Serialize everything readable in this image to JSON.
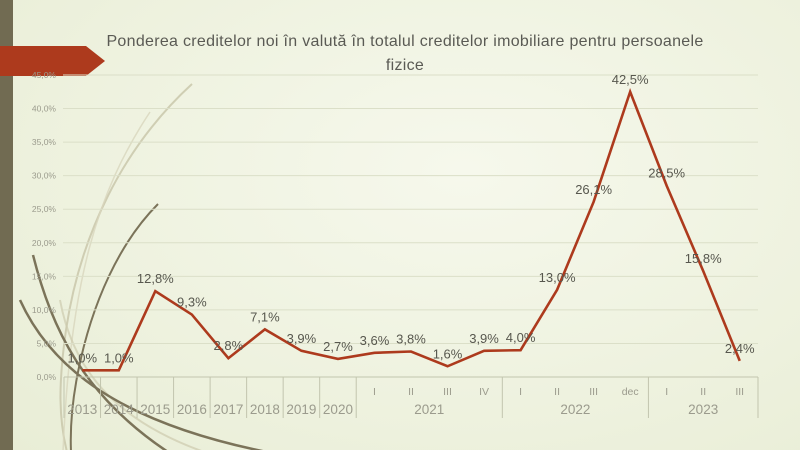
{
  "slide": {
    "title": "Ponderea creditelor noi în valută în totalul creditelor imobiliare pentru persoanele fizice"
  },
  "colors": {
    "accent": "#ad3a1d",
    "bar": "#716b52",
    "background_light": "#f6f8ec",
    "background_mid": "#edf1dd",
    "background_dark": "#e3e8cd",
    "grid": "#dbdfc8",
    "axis_line": "#c2c5ae",
    "axis_text": "#9b9b8d",
    "data_label": "#57574e",
    "title_text": "#5a5a54",
    "swoosh_dark": "#7b7359",
    "swoosh_light": "#c9c7aa"
  },
  "chart_data": {
    "type": "line",
    "title": "Ponderea creditelor noi în valută în totalul creditelor imobiliare pentru persoanele fizice",
    "series": [
      {
        "name": "Ponderea creditelor noi în valută",
        "color": "#ad3a1d",
        "values": [
          1.0,
          1.0,
          12.8,
          9.3,
          2.8,
          7.1,
          3.9,
          2.7,
          3.6,
          3.8,
          1.6,
          3.9,
          4.0,
          13.0,
          26.1,
          42.5,
          28.5,
          15.8,
          2.4
        ]
      }
    ],
    "point_labels": [
      "1,0%",
      "1,0%",
      "12,8%",
      "9,3%",
      "2,8%",
      "7,1%",
      "3,9%",
      "2,7%",
      "3,6%",
      "3,8%",
      "1,6%",
      "3,9%",
      "4,0%",
      "13,0%",
      "26,1%",
      "42,5%",
      "28,5%",
      "15,8%",
      "2,4%"
    ],
    "x_axis": {
      "quarter_labels": [
        "",
        "",
        "",
        "",
        "",
        "",
        "",
        "",
        "I",
        "II",
        "III",
        "IV",
        "I",
        "II",
        "III",
        "dec",
        "I",
        "II",
        "III"
      ],
      "year_groups": [
        {
          "label": "2013",
          "cells": 1
        },
        {
          "label": "2014",
          "cells": 1
        },
        {
          "label": "2015",
          "cells": 1
        },
        {
          "label": "2016",
          "cells": 1
        },
        {
          "label": "2017",
          "cells": 1
        },
        {
          "label": "2018",
          "cells": 1
        },
        {
          "label": "2019",
          "cells": 1
        },
        {
          "label": "2020",
          "cells": 1
        },
        {
          "label": "2021",
          "cells": 4
        },
        {
          "label": "2022",
          "cells": 4
        },
        {
          "label": "2023",
          "cells": 3
        }
      ]
    },
    "y_axis": {
      "min": 0,
      "max": 45,
      "step": 5,
      "tick_labels": [
        "0,0%",
        "5,0%",
        "10,0%",
        "15,0%",
        "20,0%",
        "25,0%",
        "30,0%",
        "35,0%",
        "40,0%",
        "45,0%"
      ],
      "unit": "%"
    },
    "grid": true,
    "legend": "none"
  }
}
